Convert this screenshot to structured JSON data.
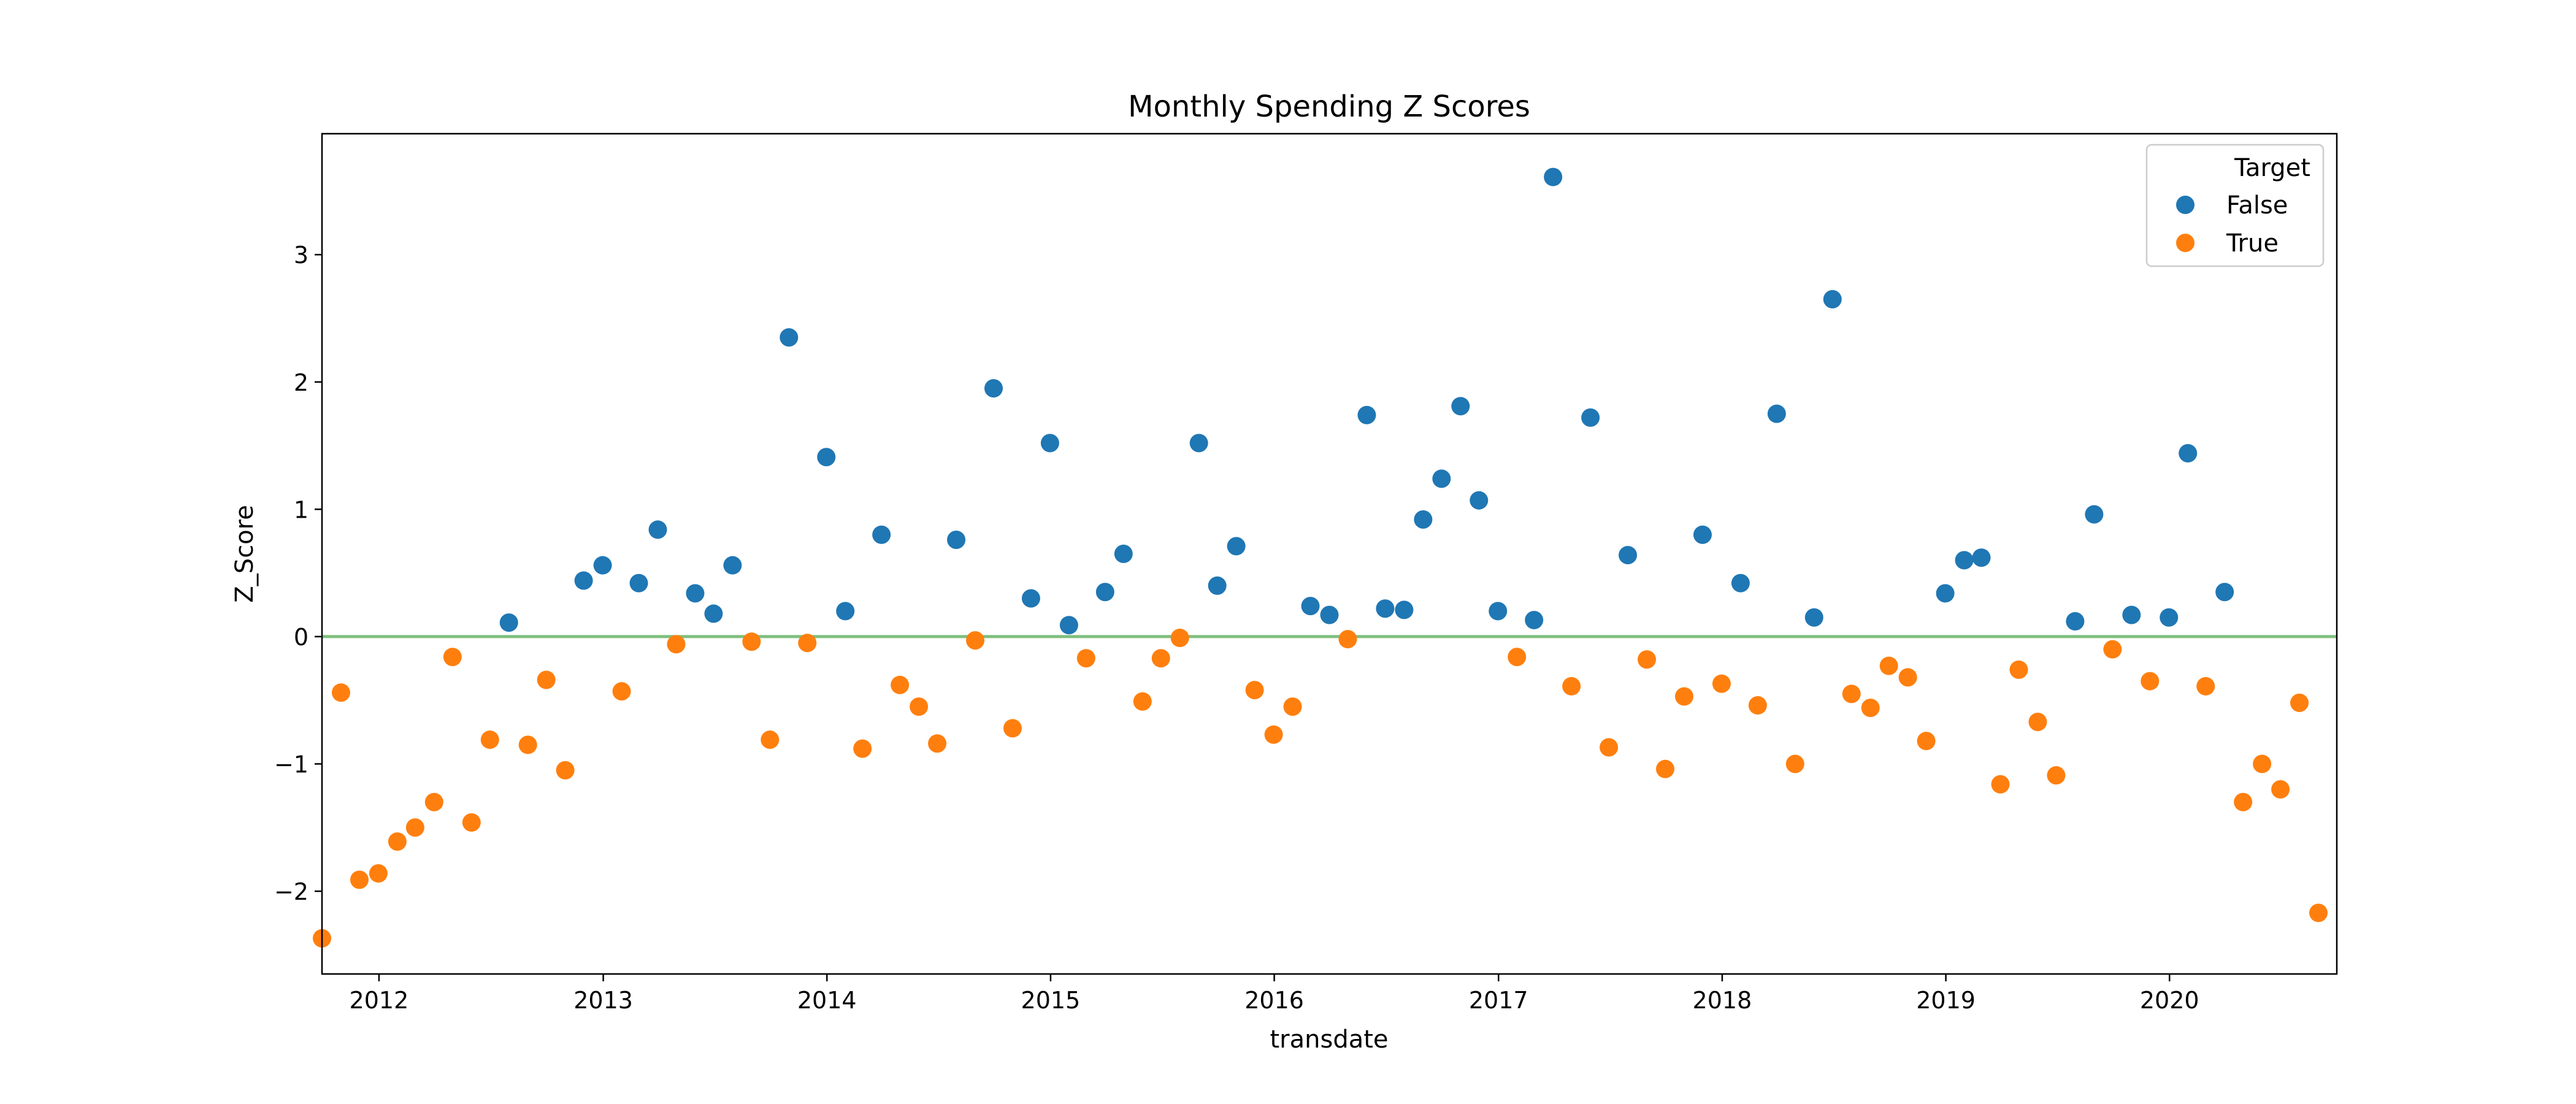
{
  "chart_data": {
    "type": "scatter",
    "title": "Monthly Spending Z Scores",
    "xlabel": "transdate",
    "ylabel": "Z_Score",
    "xlim": [
      "2011-09-30",
      "2020-09-30"
    ],
    "ylim": [
      -2.65,
      3.95
    ],
    "x_ticks": [
      "2012",
      "2013",
      "2014",
      "2015",
      "2016",
      "2017",
      "2018",
      "2019",
      "2020"
    ],
    "y_ticks": [
      -2,
      -1,
      0,
      1,
      2,
      3
    ],
    "y_tick_labels": [
      "−2",
      "−1",
      "0",
      "1",
      "2",
      "3"
    ],
    "grid": false,
    "legend": {
      "title": "Target",
      "position": "top-right"
    },
    "reference_line": {
      "y": 0,
      "color": "#7fbf7f"
    },
    "series": [
      {
        "name": "False",
        "color": "#1f77b4",
        "points": [
          [
            "2012-07-31",
            0.11
          ],
          [
            "2012-11-30",
            0.44
          ],
          [
            "2012-12-31",
            0.56
          ],
          [
            "2013-02-28",
            0.42
          ],
          [
            "2013-03-31",
            0.84
          ],
          [
            "2013-05-31",
            0.34
          ],
          [
            "2013-06-30",
            0.18
          ],
          [
            "2013-07-31",
            0.56
          ],
          [
            "2013-10-31",
            2.35
          ],
          [
            "2013-12-31",
            1.41
          ],
          [
            "2014-01-31",
            0.2
          ],
          [
            "2014-03-31",
            0.8
          ],
          [
            "2014-07-31",
            0.76
          ],
          [
            "2014-09-30",
            1.95
          ],
          [
            "2014-11-30",
            0.3
          ],
          [
            "2014-12-31",
            1.52
          ],
          [
            "2015-01-31",
            0.09
          ],
          [
            "2015-03-31",
            0.35
          ],
          [
            "2015-04-30",
            0.65
          ],
          [
            "2015-08-31",
            1.52
          ],
          [
            "2015-09-30",
            0.4
          ],
          [
            "2015-10-31",
            0.71
          ],
          [
            "2016-02-29",
            0.24
          ],
          [
            "2016-03-31",
            0.17
          ],
          [
            "2016-05-31",
            1.74
          ],
          [
            "2016-06-30",
            0.22
          ],
          [
            "2016-07-31",
            0.21
          ],
          [
            "2016-08-31",
            0.92
          ],
          [
            "2016-09-30",
            1.24
          ],
          [
            "2016-10-31",
            1.81
          ],
          [
            "2016-11-30",
            1.07
          ],
          [
            "2016-12-31",
            0.2
          ],
          [
            "2017-02-28",
            0.13
          ],
          [
            "2017-03-31",
            3.61
          ],
          [
            "2017-05-31",
            1.72
          ],
          [
            "2017-07-31",
            0.64
          ],
          [
            "2017-11-30",
            0.8
          ],
          [
            "2018-01-31",
            0.42
          ],
          [
            "2018-03-31",
            1.75
          ],
          [
            "2018-05-31",
            0.15
          ],
          [
            "2018-06-30",
            2.65
          ],
          [
            "2018-12-31",
            0.34
          ],
          [
            "2019-01-31",
            0.6
          ],
          [
            "2019-02-28",
            0.62
          ],
          [
            "2019-07-31",
            0.12
          ],
          [
            "2019-08-31",
            0.96
          ],
          [
            "2019-10-31",
            0.17
          ],
          [
            "2019-12-31",
            0.15
          ],
          [
            "2020-01-31",
            1.44
          ],
          [
            "2020-03-31",
            0.35
          ]
        ]
      },
      {
        "name": "True",
        "color": "#ff7f0e",
        "points": [
          [
            "2011-09-30",
            -2.37
          ],
          [
            "2011-10-31",
            -0.44
          ],
          [
            "2011-11-30",
            -1.91
          ],
          [
            "2011-12-31",
            -1.86
          ],
          [
            "2012-01-31",
            -1.61
          ],
          [
            "2012-02-29",
            -1.5
          ],
          [
            "2012-03-31",
            -1.3
          ],
          [
            "2012-04-30",
            -0.16
          ],
          [
            "2012-05-31",
            -1.46
          ],
          [
            "2012-06-30",
            -0.81
          ],
          [
            "2012-08-31",
            -0.85
          ],
          [
            "2012-09-30",
            -0.34
          ],
          [
            "2012-10-31",
            -1.05
          ],
          [
            "2013-01-31",
            -0.43
          ],
          [
            "2013-04-30",
            -0.06
          ],
          [
            "2013-08-31",
            -0.04
          ],
          [
            "2013-09-30",
            -0.81
          ],
          [
            "2013-11-30",
            -0.05
          ],
          [
            "2014-02-28",
            -0.88
          ],
          [
            "2014-04-30",
            -0.38
          ],
          [
            "2014-05-31",
            -0.55
          ],
          [
            "2014-06-30",
            -0.84
          ],
          [
            "2014-08-31",
            -0.03
          ],
          [
            "2014-10-31",
            -0.72
          ],
          [
            "2015-02-28",
            -0.17
          ],
          [
            "2015-05-31",
            -0.51
          ],
          [
            "2015-06-30",
            -0.17
          ],
          [
            "2015-07-31",
            -0.01
          ],
          [
            "2015-11-30",
            -0.42
          ],
          [
            "2015-12-31",
            -0.77
          ],
          [
            "2016-01-31",
            -0.55
          ],
          [
            "2016-04-30",
            -0.02
          ],
          [
            "2017-01-31",
            -0.16
          ],
          [
            "2017-04-30",
            -0.39
          ],
          [
            "2017-06-30",
            -0.87
          ],
          [
            "2017-08-31",
            -0.18
          ],
          [
            "2017-09-30",
            -1.04
          ],
          [
            "2017-10-31",
            -0.47
          ],
          [
            "2017-12-31",
            -0.37
          ],
          [
            "2018-02-28",
            -0.54
          ],
          [
            "2018-04-30",
            -1.0
          ],
          [
            "2018-07-31",
            -0.45
          ],
          [
            "2018-08-31",
            -0.56
          ],
          [
            "2018-09-30",
            -0.23
          ],
          [
            "2018-10-31",
            -0.32
          ],
          [
            "2018-11-30",
            -0.82
          ],
          [
            "2019-03-31",
            -1.16
          ],
          [
            "2019-04-30",
            -0.26
          ],
          [
            "2019-05-31",
            -0.67
          ],
          [
            "2019-06-30",
            -1.09
          ],
          [
            "2019-09-30",
            -0.1
          ],
          [
            "2019-11-30",
            -0.35
          ],
          [
            "2020-02-29",
            -0.39
          ],
          [
            "2020-04-30",
            -1.3
          ],
          [
            "2020-05-31",
            -1.0
          ],
          [
            "2020-06-30",
            -1.2
          ],
          [
            "2020-07-31",
            -0.52
          ],
          [
            "2020-08-31",
            -2.17
          ]
        ]
      }
    ]
  }
}
